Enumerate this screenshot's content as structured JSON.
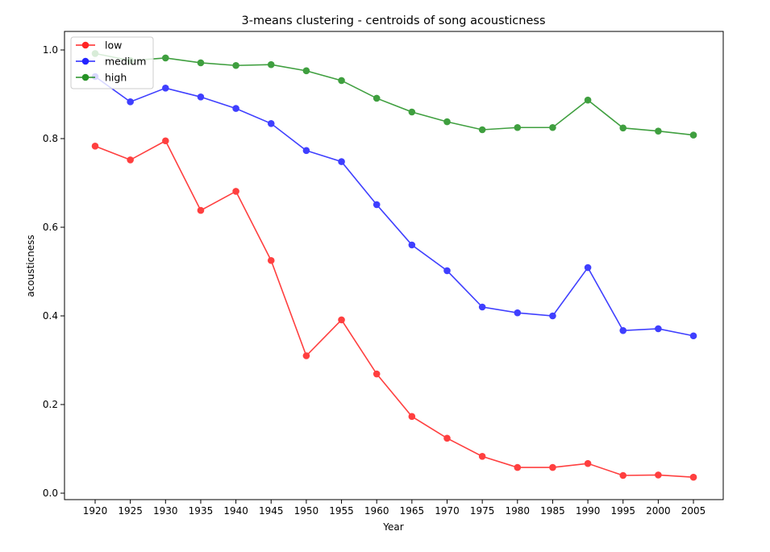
{
  "chart_data": {
    "type": "line",
    "title": "3-means clustering - centroids of song acousticness",
    "xlabel": "Year",
    "ylabel": "acousticness",
    "x": [
      1920,
      1925,
      1930,
      1935,
      1940,
      1945,
      1950,
      1955,
      1960,
      1965,
      1970,
      1975,
      1980,
      1985,
      1990,
      1995,
      2000,
      2005
    ],
    "xticks": [
      "1920",
      "1925",
      "1930",
      "1935",
      "1940",
      "1945",
      "1950",
      "1955",
      "1960",
      "1965",
      "1970",
      "1975",
      "1980",
      "1985",
      "1990",
      "1995",
      "2000",
      "2005"
    ],
    "yticks": [
      "0.0",
      "0.2",
      "0.4",
      "0.6",
      "0.8",
      "1.0"
    ],
    "ylim": [
      -0.015,
      1.04
    ],
    "grid": false,
    "legend_position": "top-left",
    "series": [
      {
        "name": "low",
        "color": "#ff0000",
        "values": [
          0.783,
          0.752,
          0.795,
          0.638,
          0.681,
          0.525,
          0.31,
          0.391,
          0.269,
          0.173,
          0.124,
          0.083,
          0.058,
          0.058,
          0.067,
          0.04,
          0.041,
          0.036
        ]
      },
      {
        "name": "medium",
        "color": "#0000ff",
        "values": [
          0.94,
          0.883,
          0.914,
          0.894,
          0.868,
          0.834,
          0.773,
          0.748,
          0.651,
          0.56,
          0.502,
          0.42,
          0.407,
          0.4,
          0.509,
          0.367,
          0.371,
          0.355
        ]
      },
      {
        "name": "high",
        "color": "#008000",
        "values": [
          0.992,
          0.976,
          0.982,
          0.971,
          0.965,
          0.967,
          0.953,
          0.931,
          0.891,
          0.86,
          0.838,
          0.82,
          0.825,
          0.825,
          0.887,
          0.824,
          0.817,
          0.808
        ]
      }
    ]
  }
}
